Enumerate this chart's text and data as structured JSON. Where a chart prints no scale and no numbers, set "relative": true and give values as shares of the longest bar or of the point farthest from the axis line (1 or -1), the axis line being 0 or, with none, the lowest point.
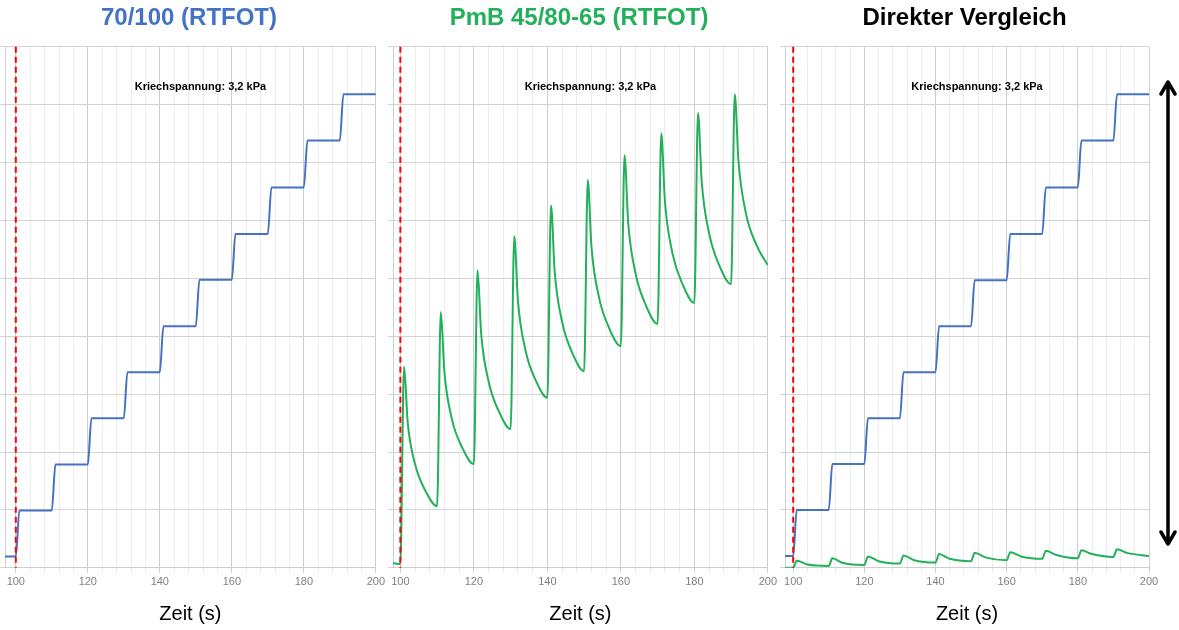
{
  "chart_data": [
    {
      "type": "line",
      "title": "70/100 (RTFOT)",
      "xlabel": "Zeit (s)",
      "relative": true,
      "grid": true,
      "legend": false,
      "marker": "none",
      "line_style": "solid",
      "tick_labels": "x",
      "xlim": [
        97,
        200
      ],
      "xticks": [
        100,
        {
          "value": 104,
          "label": null
        },
        {
          "value": 108,
          "label": null
        },
        {
          "value": 112,
          "label": null
        },
        {
          "value": 116,
          "label": null
        },
        120,
        {
          "value": 124,
          "label": null
        },
        {
          "value": 128,
          "label": null
        },
        {
          "value": 132,
          "label": null
        },
        {
          "value": 136,
          "label": null
        },
        140,
        {
          "value": 144,
          "label": null
        },
        {
          "value": 148,
          "label": null
        },
        {
          "value": 152,
          "label": null
        },
        {
          "value": 156,
          "label": null
        },
        160,
        {
          "value": 164,
          "label": null
        },
        {
          "value": 168,
          "label": null
        },
        {
          "value": 172,
          "label": null
        },
        {
          "value": 176,
          "label": null
        },
        180,
        {
          "value": 184,
          "label": null
        },
        {
          "value": 188,
          "label": null
        },
        {
          "value": 192,
          "label": null
        },
        {
          "value": 196,
          "label": null
        },
        200
      ],
      "annotations": [
        "Kriechspannung: 3,2 kPa"
      ],
      "ref_lines": [
        {
          "axis": "x",
          "value": 100,
          "color": "#ff0000",
          "line_style": "dashed"
        }
      ],
      "series": [
        {
          "color": "#4472c4",
          "x": [
            97,
            100,
            101,
            110,
            111,
            120,
            121,
            130,
            131,
            140,
            141,
            150,
            151,
            160,
            161,
            170,
            171,
            180,
            181,
            190,
            191,
            200
          ],
          "values": [
            0.024,
            0.024,
            0.121,
            0.121,
            0.218,
            0.218,
            0.316,
            0.316,
            0.413,
            0.413,
            0.51,
            0.51,
            0.608,
            0.608,
            0.705,
            0.705,
            0.803,
            0.803,
            0.902,
            0.902,
            1,
            1
          ]
        }
      ]
    },
    {
      "type": "line",
      "title": "PmB 45/80-65 (RTFOT)",
      "xlabel": "Zeit (s)",
      "relative": true,
      "grid": true,
      "legend": false,
      "marker": "none",
      "line_style": "solid",
      "tick_labels": "x",
      "xlim": [
        98,
        200
      ],
      "xticks": [
        100,
        {
          "value": 104,
          "label": null
        },
        {
          "value": 108,
          "label": null
        },
        {
          "value": 112,
          "label": null
        },
        {
          "value": 116,
          "label": null
        },
        120,
        {
          "value": 124,
          "label": null
        },
        {
          "value": 128,
          "label": null
        },
        {
          "value": 132,
          "label": null
        },
        {
          "value": 136,
          "label": null
        },
        140,
        {
          "value": 144,
          "label": null
        },
        {
          "value": 148,
          "label": null
        },
        {
          "value": 152,
          "label": null
        },
        {
          "value": 156,
          "label": null
        },
        160,
        {
          "value": 164,
          "label": null
        },
        {
          "value": 168,
          "label": null
        },
        {
          "value": 172,
          "label": null
        },
        {
          "value": 176,
          "label": null
        },
        180,
        {
          "value": 184,
          "label": null
        },
        {
          "value": 188,
          "label": null
        },
        {
          "value": 192,
          "label": null
        },
        {
          "value": 196,
          "label": null
        },
        200
      ],
      "annotations": [
        "Kriechspannung: 3,2 kPa"
      ],
      "ref_lines": [
        {
          "axis": "x",
          "value": 100,
          "color": "#ff0000",
          "line_style": "dashed"
        }
      ],
      "series": [
        {
          "color": "#22b15a",
          "x": [
            98,
            100,
            101,
            102,
            104,
            107,
            110,
            111,
            112,
            114,
            117,
            120,
            121,
            122,
            124,
            127,
            130,
            131,
            132,
            134,
            137,
            140,
            141,
            142,
            144,
            147,
            150,
            151,
            152,
            154,
            157,
            160,
            161,
            162,
            164,
            167,
            170,
            171,
            172,
            174,
            177,
            180,
            181,
            182,
            184,
            187,
            190,
            191,
            192,
            194,
            197,
            200
          ],
          "values": [
            0.01,
            0.008,
            0.425,
            0.307,
            0.219,
            0.16,
            0.13,
            0.54,
            0.412,
            0.315,
            0.251,
            0.219,
            0.628,
            0.494,
            0.394,
            0.327,
            0.293,
            0.7,
            0.564,
            0.461,
            0.393,
            0.359,
            0.765,
            0.625,
            0.52,
            0.45,
            0.415,
            0.819,
            0.679,
            0.573,
            0.503,
            0.468,
            0.871,
            0.729,
            0.622,
            0.551,
            0.515,
            0.917,
            0.774,
            0.666,
            0.595,
            0.559,
            0.96,
            0.816,
            0.707,
            0.635,
            0.599,
            1,
            0.86,
            0.75,
            0.68,
            0.639
          ]
        }
      ]
    },
    {
      "type": "line",
      "title": "Direkter Vergleich",
      "xlabel": "Zeit (s)",
      "relative": true,
      "grid": true,
      "legend": false,
      "marker": "none",
      "line_style": "solid",
      "tick_labels": "x",
      "xlim": [
        97.7,
        200
      ],
      "xticks": [
        100,
        {
          "value": 104,
          "label": null
        },
        {
          "value": 108,
          "label": null
        },
        {
          "value": 112,
          "label": null
        },
        {
          "value": 116,
          "label": null
        },
        120,
        {
          "value": 124,
          "label": null
        },
        {
          "value": 128,
          "label": null
        },
        {
          "value": 132,
          "label": null
        },
        {
          "value": 136,
          "label": null
        },
        140,
        {
          "value": 144,
          "label": null
        },
        {
          "value": 148,
          "label": null
        },
        {
          "value": 152,
          "label": null
        },
        {
          "value": 156,
          "label": null
        },
        160,
        {
          "value": 164,
          "label": null
        },
        {
          "value": 168,
          "label": null
        },
        {
          "value": 172,
          "label": null
        },
        {
          "value": 176,
          "label": null
        },
        180,
        {
          "value": 184,
          "label": null
        },
        {
          "value": 188,
          "label": null
        },
        {
          "value": 192,
          "label": null
        },
        {
          "value": 196,
          "label": null
        },
        200
      ],
      "annotations": [
        "Kriechspannung: 3,2 kPa"
      ],
      "ref_lines": [
        {
          "axis": "x",
          "value": 100,
          "color": "#ff0000",
          "line_style": "dashed"
        }
      ],
      "series": [
        {
          "color": "#4472c4",
          "x": [
            97.7,
            100,
            101,
            110,
            111,
            120,
            121,
            130,
            131,
            140,
            141,
            150,
            151,
            160,
            161,
            170,
            171,
            180,
            181,
            190,
            191,
            200
          ],
          "values": [
            0.025,
            0.025,
            0.122,
            0.122,
            0.219,
            0.219,
            0.316,
            0.316,
            0.413,
            0.413,
            0.51,
            0.51,
            0.607,
            0.607,
            0.705,
            0.705,
            0.803,
            0.803,
            0.902,
            0.902,
            1,
            1
          ]
        },
        {
          "color": "#22b15a",
          "x": [
            97.7,
            100,
            101,
            104,
            110,
            111,
            114,
            120,
            121,
            124,
            130,
            131,
            134,
            140,
            141,
            144,
            150,
            151,
            154,
            160,
            161,
            164,
            170,
            171,
            174,
            180,
            181,
            184,
            190,
            191,
            194,
            200
          ],
          "values": [
            0,
            0,
            0.015,
            0.007,
            0.004,
            0.02,
            0.01,
            0.006,
            0.024,
            0.014,
            0.009,
            0.026,
            0.016,
            0.011,
            0.029,
            0.019,
            0.014,
            0.032,
            0.022,
            0.016,
            0.033,
            0.024,
            0.019,
            0.036,
            0.027,
            0.02,
            0.037,
            0.029,
            0.023,
            0.039,
            0.031,
            0.025
          ]
        }
      ]
    }
  ]
}
